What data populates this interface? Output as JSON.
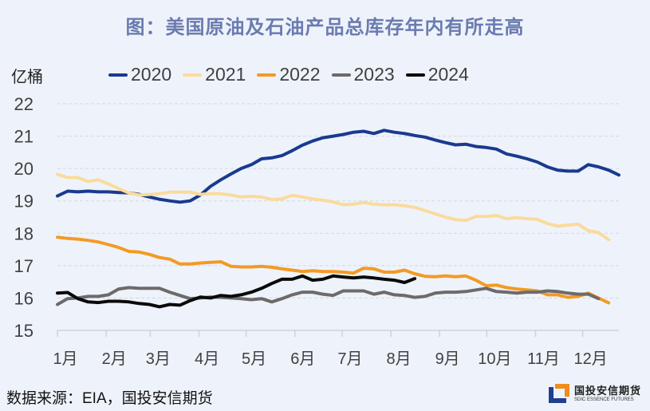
{
  "title": "图：美国原油及石油产品总库存年内有所走高",
  "unit_label": "亿桶",
  "source": "数据来源：EIA，国投安信期货",
  "logo": {
    "cn": "国投安信期货",
    "en": "SDIC ESSENCE FUTURES",
    "colors": {
      "blue": "#1f3f8f",
      "orange": "#f08c1e"
    }
  },
  "chart_data": {
    "type": "line",
    "title": "图：美国原油及石油产品总库存年内有所走高",
    "xlabel": "",
    "ylabel": "亿桶",
    "ylim": [
      15,
      22
    ],
    "yticks": [
      15,
      16,
      17,
      18,
      19,
      20,
      21,
      22
    ],
    "grid": "horizontal-dashed",
    "legend_position": "top",
    "x_unit": "week of year (1-52)",
    "xticks": [
      {
        "label": "1月",
        "week": 1
      },
      {
        "label": "2月",
        "week": 5.43
      },
      {
        "label": "3月",
        "week": 9.43
      },
      {
        "label": "4月",
        "week": 13.86
      },
      {
        "label": "5月",
        "week": 18.14
      },
      {
        "label": "6月",
        "week": 22.57
      },
      {
        "label": "7月",
        "week": 26.86
      },
      {
        "label": "8月",
        "week": 31.29
      },
      {
        "label": "9月",
        "week": 35.71
      },
      {
        "label": "10月",
        "week": 40
      },
      {
        "label": "11月",
        "week": 44.43
      },
      {
        "label": "12月",
        "week": 48.71
      }
    ],
    "xlim": [
      1,
      52
    ],
    "series": [
      {
        "name": "2020",
        "color": "#1a3a8f",
        "values": [
          19.15,
          19.3,
          19.28,
          19.3,
          19.28,
          19.28,
          19.26,
          19.25,
          19.2,
          19.12,
          19.05,
          19.0,
          18.96,
          19.0,
          19.18,
          19.45,
          19.65,
          19.83,
          20.0,
          20.12,
          20.3,
          20.33,
          20.4,
          20.55,
          20.72,
          20.85,
          20.95,
          21.0,
          21.05,
          21.12,
          21.15,
          21.08,
          21.18,
          21.12,
          21.08,
          21.02,
          20.97,
          20.88,
          20.8,
          20.73,
          20.75,
          20.68,
          20.65,
          20.6,
          20.45,
          20.38,
          20.3,
          20.2,
          20.05,
          19.95,
          19.92,
          19.92,
          20.12,
          20.05,
          19.95,
          19.8
        ]
      },
      {
        "name": "2021",
        "color": "#fadb9c",
        "values": [
          19.82,
          19.72,
          19.72,
          19.6,
          19.65,
          19.52,
          19.38,
          19.25,
          19.18,
          19.2,
          19.22,
          19.27,
          19.27,
          19.27,
          19.2,
          19.22,
          19.22,
          19.18,
          19.12,
          19.14,
          19.12,
          19.04,
          19.06,
          19.17,
          19.12,
          19.06,
          19.02,
          18.97,
          18.88,
          18.9,
          18.95,
          18.9,
          18.88,
          18.88,
          18.85,
          18.8,
          18.7,
          18.6,
          18.5,
          18.42,
          18.4,
          18.52,
          18.52,
          18.55,
          18.45,
          18.48,
          18.45,
          18.43,
          18.3,
          18.22,
          18.25,
          18.28,
          18.08,
          18.02,
          17.8
        ]
      },
      {
        "name": "2022",
        "color": "#f39a25",
        "values": [
          17.88,
          17.84,
          17.82,
          17.78,
          17.73,
          17.65,
          17.56,
          17.44,
          17.42,
          17.35,
          17.25,
          17.2,
          17.05,
          17.05,
          17.08,
          17.1,
          17.12,
          16.98,
          16.96,
          16.96,
          16.98,
          16.95,
          16.9,
          16.86,
          16.82,
          16.84,
          16.82,
          16.82,
          16.8,
          16.77,
          16.92,
          16.9,
          16.8,
          16.8,
          16.86,
          16.75,
          16.67,
          16.66,
          16.68,
          16.66,
          16.68,
          16.55,
          16.38,
          16.4,
          16.32,
          16.28,
          16.25,
          16.22,
          16.1,
          16.1,
          16.02,
          16.05,
          16.15,
          16.0,
          15.85
        ]
      },
      {
        "name": "2023",
        "color": "#6e6a6a",
        "values": [
          15.8,
          15.98,
          16.0,
          16.05,
          16.05,
          16.1,
          16.28,
          16.32,
          16.3,
          16.3,
          16.3,
          16.18,
          16.08,
          15.98,
          16.0,
          16.03,
          16.02,
          16.0,
          15.98,
          15.95,
          15.98,
          15.88,
          15.98,
          16.1,
          16.18,
          16.18,
          16.12,
          16.08,
          16.22,
          16.22,
          16.22,
          16.12,
          16.18,
          16.1,
          16.08,
          16.02,
          16.05,
          16.15,
          16.18,
          16.18,
          16.2,
          16.25,
          16.3,
          16.2,
          16.18,
          16.15,
          16.18,
          16.18,
          16.22,
          16.2,
          16.15,
          16.12,
          16.12,
          15.98
        ]
      },
      {
        "name": "2024",
        "color": "#0a0a0a",
        "values": [
          16.15,
          16.17,
          15.98,
          15.88,
          15.86,
          15.9,
          15.9,
          15.88,
          15.83,
          15.8,
          15.73,
          15.8,
          15.78,
          15.92,
          16.03,
          16.0,
          16.08,
          16.05,
          16.1,
          16.18,
          16.3,
          16.45,
          16.58,
          16.58,
          16.68,
          16.55,
          16.58,
          16.68,
          16.65,
          16.62,
          16.65,
          16.62,
          16.58,
          16.55,
          16.48,
          16.6
        ]
      }
    ]
  }
}
